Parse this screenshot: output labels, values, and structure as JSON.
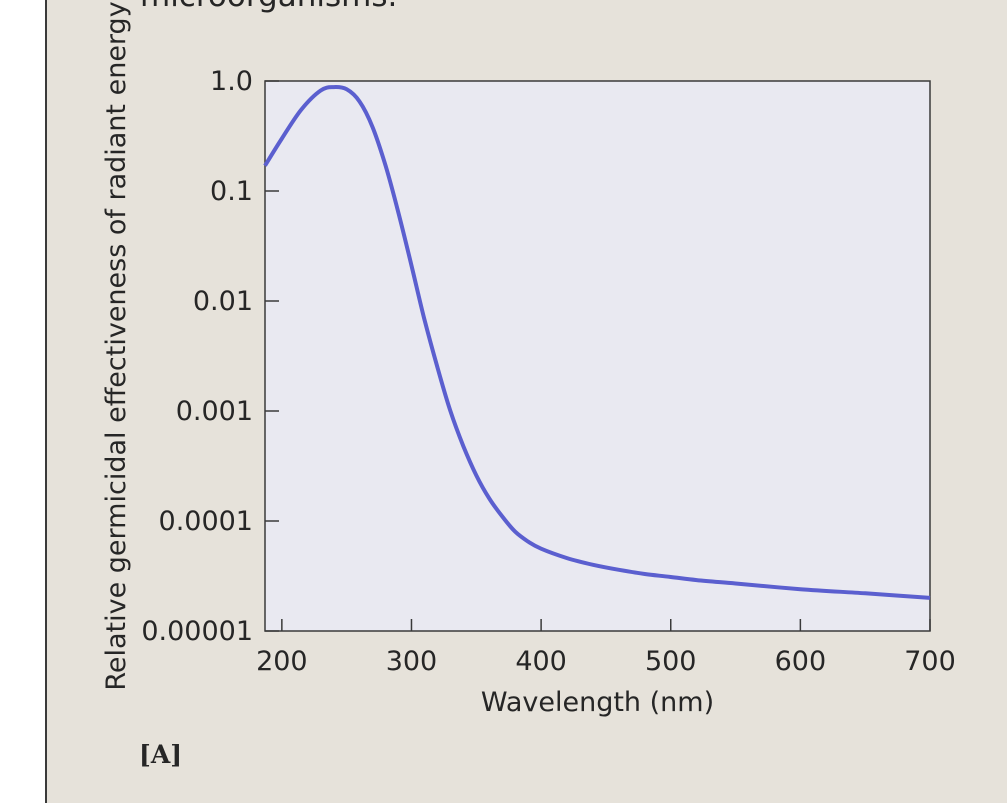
{
  "caption": "microorganisms.",
  "panel_label": "[A]",
  "colors": {
    "panel_background": "#e6e2da",
    "plot_background": "#e9e9f1",
    "curve": "#5b5fcf",
    "axis": "#3a3a3a",
    "text": "#262626"
  },
  "chart_data": {
    "type": "line",
    "title": "",
    "xlabel": "Wavelength (nm)",
    "ylabel": "Relative germicidal effectiveness of radiant energy",
    "xlim": [
      187,
      700
    ],
    "ylim": [
      1e-05,
      1.0
    ],
    "yscale": "log",
    "grid": false,
    "xticks": [
      200,
      300,
      400,
      500,
      600,
      700
    ],
    "xtick_labels": [
      "200",
      "300",
      "400",
      "500",
      "600",
      "700"
    ],
    "yticks": [
      1e-05,
      0.0001,
      0.001,
      0.01,
      0.1,
      1.0
    ],
    "ytick_labels": [
      "0.00001",
      "0.0001",
      "0.001",
      "0.01",
      "0.1",
      "1.0"
    ],
    "series": [
      {
        "x": [
          187,
          200,
          215,
          230,
          240,
          250,
          260,
          270,
          280,
          290,
          300,
          310,
          320,
          330,
          340,
          350,
          360,
          370,
          380,
          390,
          400,
          420,
          440,
          460,
          480,
          500,
          520,
          550,
          600,
          650,
          700
        ],
        "y": [
          0.17,
          0.3,
          0.55,
          0.82,
          0.88,
          0.84,
          0.65,
          0.38,
          0.17,
          0.063,
          0.021,
          0.0068,
          0.0025,
          0.001,
          0.00048,
          0.00026,
          0.00016,
          0.00011,
          8e-05,
          6.5e-05,
          5.6e-05,
          4.6e-05,
          4e-05,
          3.6e-05,
          3.3e-05,
          3.1e-05,
          2.9e-05,
          2.7e-05,
          2.4e-05,
          2.2e-05,
          2e-05
        ]
      }
    ]
  }
}
